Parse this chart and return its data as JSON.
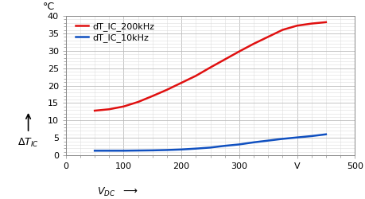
{
  "x_200kHz": [
    50,
    75,
    100,
    125,
    150,
    175,
    200,
    225,
    250,
    275,
    300,
    325,
    350,
    375,
    400,
    425,
    450
  ],
  "y_200kHz": [
    12.8,
    13.2,
    14.0,
    15.3,
    17.0,
    18.8,
    20.8,
    22.8,
    25.2,
    27.5,
    29.8,
    32.0,
    34.0,
    36.0,
    37.2,
    37.8,
    38.2
  ],
  "x_10kHz": [
    50,
    75,
    100,
    125,
    150,
    175,
    200,
    225,
    250,
    275,
    300,
    325,
    350,
    375,
    400,
    425,
    450
  ],
  "y_10kHz": [
    1.3,
    1.3,
    1.3,
    1.35,
    1.4,
    1.5,
    1.65,
    1.9,
    2.2,
    2.7,
    3.1,
    3.7,
    4.2,
    4.7,
    5.1,
    5.5,
    6.0
  ],
  "color_200kHz": "#e01010",
  "color_10kHz": "#1050c0",
  "label_200kHz": "dT_IC_200kHz",
  "label_10kHz": "dT_IC_10kHz",
  "xlabel": "$V_{DC}$",
  "ylabel_main": "ΔT",
  "ylabel_sub": "IC",
  "unit_y": "°C",
  "xlim": [
    0,
    500
  ],
  "ylim": [
    0,
    40
  ],
  "xticks": [
    0,
    100,
    200,
    300,
    400,
    500
  ],
  "xtick_labels": [
    "0",
    "100",
    "200",
    "300",
    "V",
    "500"
  ],
  "yticks": [
    0,
    5,
    10,
    15,
    20,
    25,
    30,
    35,
    40
  ],
  "grid_major_color": "#bbbbbb",
  "grid_minor_color": "#dddddd",
  "bg_color": "#ffffff",
  "line_width": 1.8,
  "legend_fontsize": 8,
  "tick_fontsize": 8,
  "label_fontsize": 9
}
